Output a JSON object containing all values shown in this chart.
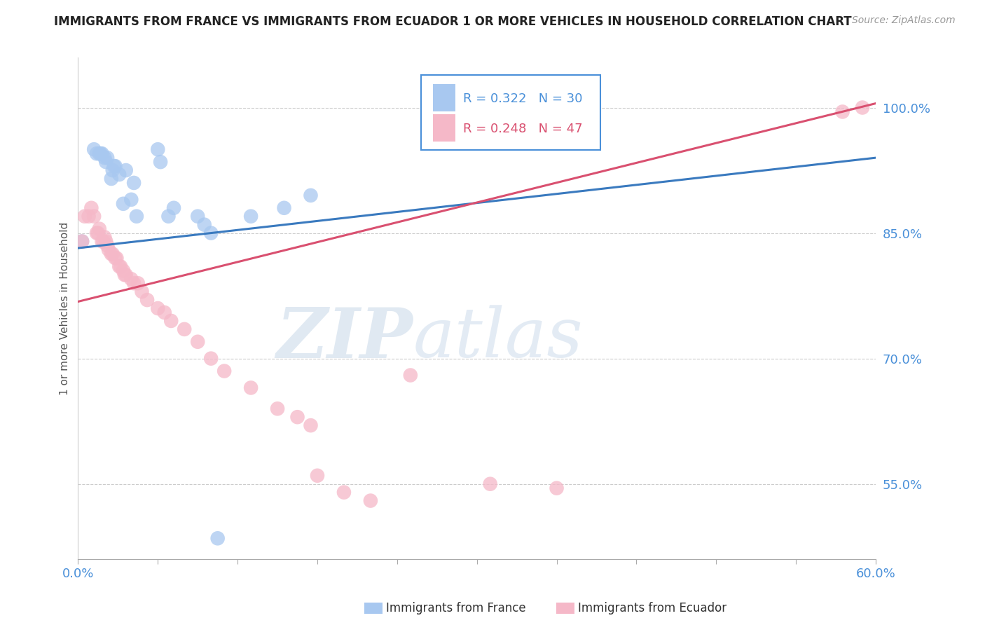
{
  "title": "IMMIGRANTS FROM FRANCE VS IMMIGRANTS FROM ECUADOR 1 OR MORE VEHICLES IN HOUSEHOLD CORRELATION CHART",
  "source": "Source: ZipAtlas.com",
  "ylabel": "1 or more Vehicles in Household",
  "xlim": [
    0.0,
    0.6
  ],
  "ylim": [
    0.46,
    1.06
  ],
  "xticks": [
    0.0,
    0.06,
    0.12,
    0.18,
    0.24,
    0.3,
    0.36,
    0.42,
    0.48,
    0.54,
    0.6
  ],
  "ytick_positions": [
    0.55,
    0.7,
    0.85,
    1.0
  ],
  "ytick_labels": [
    "55.0%",
    "70.0%",
    "85.0%",
    "100.0%"
  ],
  "france_color": "#a8c8f0",
  "ecuador_color": "#f5b8c8",
  "france_R": 0.322,
  "france_N": 30,
  "ecuador_R": 0.248,
  "ecuador_N": 47,
  "trend_france_color": "#3a7abf",
  "trend_ecuador_color": "#d95070",
  "watermark_zip": "ZIP",
  "watermark_atlas": "atlas",
  "france_x": [
    0.003,
    0.012,
    0.014,
    0.016,
    0.017,
    0.018,
    0.02,
    0.021,
    0.022,
    0.025,
    0.026,
    0.027,
    0.028,
    0.031,
    0.034,
    0.036,
    0.04,
    0.042,
    0.044,
    0.06,
    0.062,
    0.068,
    0.072,
    0.09,
    0.095,
    0.1,
    0.105,
    0.13,
    0.155,
    0.175
  ],
  "france_y": [
    0.84,
    0.95,
    0.945,
    0.945,
    0.945,
    0.945,
    0.94,
    0.935,
    0.94,
    0.915,
    0.925,
    0.93,
    0.93,
    0.92,
    0.885,
    0.925,
    0.89,
    0.91,
    0.87,
    0.95,
    0.935,
    0.87,
    0.88,
    0.87,
    0.86,
    0.85,
    0.485,
    0.87,
    0.88,
    0.895
  ],
  "ecuador_x": [
    0.003,
    0.005,
    0.008,
    0.01,
    0.012,
    0.014,
    0.015,
    0.016,
    0.018,
    0.019,
    0.02,
    0.021,
    0.022,
    0.023,
    0.025,
    0.026,
    0.028,
    0.029,
    0.031,
    0.032,
    0.034,
    0.035,
    0.036,
    0.04,
    0.042,
    0.045,
    0.048,
    0.052,
    0.06,
    0.065,
    0.07,
    0.08,
    0.09,
    0.1,
    0.11,
    0.13,
    0.15,
    0.165,
    0.175,
    0.18,
    0.2,
    0.22,
    0.25,
    0.31,
    0.36,
    0.575,
    0.59
  ],
  "ecuador_y": [
    0.84,
    0.87,
    0.87,
    0.88,
    0.87,
    0.85,
    0.85,
    0.855,
    0.84,
    0.84,
    0.845,
    0.84,
    0.835,
    0.83,
    0.825,
    0.825,
    0.82,
    0.82,
    0.81,
    0.81,
    0.805,
    0.8,
    0.8,
    0.795,
    0.79,
    0.79,
    0.78,
    0.77,
    0.76,
    0.755,
    0.745,
    0.735,
    0.72,
    0.7,
    0.685,
    0.665,
    0.64,
    0.63,
    0.62,
    0.56,
    0.54,
    0.53,
    0.68,
    0.55,
    0.545,
    0.995,
    1.0
  ],
  "france_trend_x0": 0.0,
  "france_trend_y0": 0.832,
  "france_trend_x1": 0.6,
  "france_trend_y1": 0.94,
  "ecuador_trend_x0": 0.0,
  "ecuador_trend_y0": 0.768,
  "ecuador_trend_x1": 0.6,
  "ecuador_trend_y1": 1.005
}
